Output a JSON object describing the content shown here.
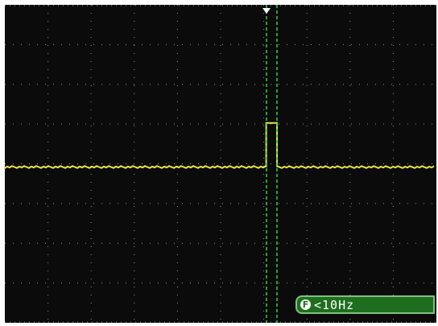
{
  "freq_readout": {
    "icon": "f-icon",
    "icon_glyph": "F",
    "text": "<10Hz"
  },
  "colors": {
    "screen": "#0b0b0b",
    "grid": "#9a9a9a",
    "trace": "#e8e34c",
    "cursor": "#2bd63a",
    "trigger_marker": "#ffffff",
    "readout_bg": "#1f6e1f"
  },
  "grid": {
    "divisions_x": 10,
    "divisions_y": 8
  },
  "trace": {
    "pulse_start_div": 6.15,
    "pulse_end_div": 6.4,
    "baseline_level_div": 4.0,
    "pulse_level_div": 2.85
  }
}
